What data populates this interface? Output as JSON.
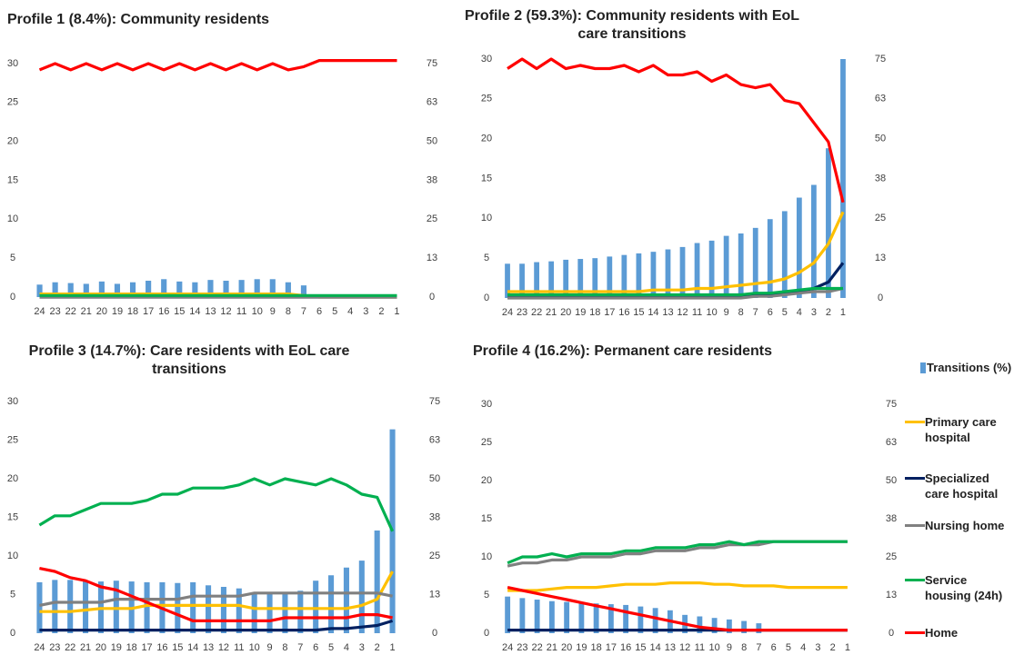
{
  "chart_data": [
    {
      "type": "combo",
      "title": "Profile 1 (8.4%): Community residents",
      "categories": [
        "24",
        "23",
        "22",
        "21",
        "20",
        "19",
        "18",
        "17",
        "16",
        "15",
        "14",
        "13",
        "12",
        "11",
        "10",
        "9",
        "8",
        "7",
        "6",
        "5",
        "4",
        "3",
        "2",
        "1"
      ],
      "ylim": [
        0,
        30
      ],
      "yticks": [
        0,
        5,
        10,
        15,
        20,
        25,
        30
      ],
      "y2lim": [
        0,
        75
      ],
      "y2ticks": [
        0,
        {
          "value": 12.5,
          "label": "13"
        },
        25,
        {
          "value": 37.5,
          "label": "38"
        },
        50,
        {
          "value": 62.5,
          "label": "63"
        },
        75
      ],
      "series": [
        {
          "color": "#5b9bd5",
          "values": [
            1.6,
            1.9,
            1.8,
            1.7,
            2.0,
            1.7,
            1.9,
            2.1,
            2.3,
            2.0,
            1.9,
            2.2,
            2.1,
            2.2,
            2.3,
            2.3,
            1.9,
            1.5,
            null,
            null,
            null,
            null,
            null,
            null
          ]
        },
        {
          "color": "#ffc000",
          "axis": "y2",
          "values": [
            1,
            1,
            1,
            1,
            1,
            1,
            1,
            1,
            1,
            1,
            1,
            1,
            1,
            1,
            1,
            1,
            1,
            0.5,
            0,
            0,
            0,
            0,
            0,
            0
          ]
        },
        {
          "color": "#002060",
          "axis": "y2",
          "values": [
            0,
            0,
            0,
            0,
            0,
            0,
            0,
            0,
            0,
            0,
            0,
            0,
            0,
            0,
            0,
            0,
            0,
            0,
            0,
            0,
            0,
            0,
            0,
            0
          ]
        },
        {
          "color": "#808080",
          "axis": "y2",
          "values": [
            0,
            0,
            0,
            0,
            0,
            0,
            0,
            0,
            0,
            0,
            0,
            0,
            0,
            0,
            0,
            0,
            0,
            0,
            0,
            0,
            0,
            0,
            0,
            0
          ]
        },
        {
          "color": "#00b050",
          "axis": "y2",
          "values": [
            0.5,
            0.5,
            0.5,
            0.5,
            0.5,
            0.5,
            0.5,
            0.5,
            0.5,
            0.5,
            0.5,
            0.5,
            0.5,
            0.5,
            0.5,
            0.5,
            0.5,
            0.5,
            0.5,
            0.5,
            0.5,
            0.5,
            0.5,
            0.5
          ]
        },
        {
          "color": "#ff0000",
          "axis": "y2",
          "values": [
            73,
            75,
            73,
            75,
            73,
            75,
            73,
            75,
            73,
            75,
            73,
            75,
            73,
            75,
            73,
            75,
            73,
            74,
            76,
            76,
            76,
            76,
            76,
            76
          ]
        }
      ]
    },
    {
      "type": "combo",
      "title": "Profile 2 (59.3%): Community residents with EoL care  transitions",
      "categories": [
        "24",
        "23",
        "22",
        "21",
        "20",
        "19",
        "18",
        "17",
        "16",
        "15",
        "14",
        "13",
        "12",
        "11",
        "10",
        "9",
        "8",
        "7",
        "6",
        "5",
        "4",
        "3",
        "2",
        "1"
      ],
      "ylim": [
        0,
        30
      ],
      "yticks": [
        0,
        5,
        10,
        15,
        20,
        25,
        30
      ],
      "y2lim": [
        0,
        75
      ],
      "y2ticks": [
        0,
        {
          "value": 12.5,
          "label": "13"
        },
        25,
        {
          "value": 37.5,
          "label": "38"
        },
        50,
        {
          "value": 62.5,
          "label": "63"
        },
        75
      ],
      "series": [
        {
          "color": "#5b9bd5",
          "values": [
            4.3,
            4.3,
            4.5,
            4.6,
            4.8,
            4.9,
            5.0,
            5.2,
            5.4,
            5.6,
            5.8,
            6.1,
            6.4,
            6.9,
            7.2,
            7.8,
            8.1,
            8.8,
            9.9,
            10.9,
            12.6,
            14.2,
            18.8,
            30
          ]
        },
        {
          "color": "#ffc000",
          "axis": "y2",
          "values": [
            2,
            2,
            2,
            2,
            2,
            2,
            2,
            2,
            2,
            2,
            2.5,
            2.5,
            2.5,
            3,
            3,
            3.5,
            4,
            4.5,
            5,
            6,
            8,
            11,
            17,
            27
          ]
        },
        {
          "color": "#002060",
          "axis": "y2",
          "values": [
            0.5,
            0.5,
            0.5,
            0.5,
            0.5,
            0.5,
            0.5,
            0.5,
            0.5,
            0.5,
            0.5,
            0.5,
            0.5,
            0.5,
            0.5,
            0.5,
            0.5,
            1,
            1,
            1.5,
            2,
            3,
            5,
            11
          ]
        },
        {
          "color": "#808080",
          "axis": "y2",
          "values": [
            0,
            0,
            0,
            0,
            0,
            0,
            0,
            0,
            0,
            0,
            0,
            0,
            0,
            0,
            0,
            0,
            0,
            0.5,
            0.5,
            1,
            1.5,
            2,
            2,
            3
          ]
        },
        {
          "color": "#00b050",
          "axis": "y2",
          "values": [
            1,
            1,
            1,
            1,
            1,
            1,
            1,
            1,
            1,
            1,
            1,
            1,
            1,
            1,
            1,
            1,
            1,
            1.5,
            1.5,
            2,
            2.5,
            3,
            3,
            3
          ]
        },
        {
          "color": "#ff0000",
          "axis": "y2",
          "values": [
            72,
            75,
            72,
            75,
            72,
            73,
            72,
            72,
            73,
            71,
            73,
            70,
            70,
            71,
            68,
            70,
            67,
            66,
            67,
            62,
            61,
            55,
            49,
            30
          ]
        }
      ]
    },
    {
      "type": "combo",
      "title": "Profile 3 (14.7%): Care residents with EoL care transitions",
      "categories": [
        "24",
        "23",
        "22",
        "21",
        "20",
        "19",
        "18",
        "17",
        "16",
        "15",
        "14",
        "13",
        "12",
        "11",
        "10",
        "9",
        "8",
        "7",
        "6",
        "5",
        "4",
        "3",
        "2",
        "1"
      ],
      "ylim": [
        0,
        30
      ],
      "yticks": [
        0,
        5,
        10,
        15,
        20,
        25,
        30
      ],
      "y2lim": [
        0,
        75
      ],
      "y2ticks": [
        0,
        {
          "value": 12.5,
          "label": "13"
        },
        25,
        {
          "value": 37.5,
          "label": "38"
        },
        50,
        {
          "value": 62.5,
          "label": "63"
        },
        75
      ],
      "series": [
        {
          "color": "#5b9bd5",
          "values": [
            6.6,
            6.9,
            6.9,
            6.8,
            6.7,
            6.8,
            6.7,
            6.6,
            6.6,
            6.5,
            6.6,
            6.2,
            6.0,
            5.8,
            5.3,
            5.1,
            5.2,
            5.5,
            6.8,
            7.5,
            8.5,
            9.4,
            13.3,
            26.4
          ]
        },
        {
          "color": "#ffc000",
          "axis": "y2",
          "values": [
            7,
            7,
            7,
            7.5,
            8,
            8,
            8,
            9,
            9,
            9,
            9,
            9,
            9,
            9,
            8,
            8,
            8,
            8,
            8,
            8,
            8,
            9,
            11,
            20
          ]
        },
        {
          "color": "#002060",
          "axis": "y2",
          "values": [
            1,
            1,
            1,
            1,
            1,
            1,
            1,
            1,
            1,
            1,
            1,
            1,
            1,
            1,
            1,
            1,
            1,
            1,
            1,
            1.5,
            1.5,
            2,
            2.5,
            4
          ]
        },
        {
          "color": "#808080",
          "axis": "y2",
          "values": [
            9,
            10,
            10,
            10,
            10,
            11,
            11,
            11,
            11,
            11,
            12,
            12,
            12,
            12,
            13,
            13,
            13,
            13,
            13,
            13,
            13,
            13,
            13,
            12
          ]
        },
        {
          "color": "#00b050",
          "axis": "y2",
          "values": [
            35,
            38,
            38,
            40,
            42,
            42,
            42,
            43,
            45,
            45,
            47,
            47,
            47,
            48,
            50,
            48,
            50,
            49,
            48,
            50,
            48,
            45,
            44,
            33
          ]
        },
        {
          "color": "#ff0000",
          "axis": "y2",
          "values": [
            21,
            20,
            18,
            17,
            15,
            14,
            12,
            10,
            8,
            6,
            4,
            4,
            4,
            4,
            4,
            4,
            5,
            5,
            5,
            5,
            5,
            6,
            6,
            5
          ]
        }
      ]
    },
    {
      "type": "combo",
      "title": "Profile 4 (16.2%): Permanent care residents",
      "categories": [
        "24",
        "23",
        "22",
        "21",
        "20",
        "19",
        "18",
        "17",
        "16",
        "15",
        "14",
        "13",
        "12",
        "11",
        "10",
        "9",
        "8",
        "7",
        "6",
        "5",
        "4",
        "3",
        "2",
        "1"
      ],
      "ylim": [
        0,
        30
      ],
      "yticks": [
        0,
        5,
        10,
        15,
        20,
        25,
        30
      ],
      "y2lim": [
        0,
        75
      ],
      "y2ticks": [
        0,
        {
          "value": 12.5,
          "label": "13"
        },
        25,
        {
          "value": 37.5,
          "label": "38"
        },
        50,
        {
          "value": 62.5,
          "label": "63"
        },
        75
      ],
      "series": [
        {
          "name": "Transitions (%)",
          "color": "#5b9bd5",
          "values": [
            4.8,
            4.6,
            4.4,
            4.2,
            4.1,
            4.0,
            3.9,
            3.8,
            3.7,
            3.5,
            3.3,
            3.0,
            2.4,
            2.2,
            2.0,
            1.8,
            1.6,
            1.3,
            null,
            null,
            null,
            null,
            null,
            null
          ]
        },
        {
          "name": "Primary care hospital",
          "color": "#ffc000",
          "axis": "y2",
          "values": [
            14,
            14,
            14,
            14.5,
            15,
            15,
            15,
            15.5,
            16,
            16,
            16,
            16.5,
            16.5,
            16.5,
            16,
            16,
            15.5,
            15.5,
            15.5,
            15,
            15,
            15,
            15,
            15
          ]
        },
        {
          "name": "Specialized care hospital",
          "color": "#002060",
          "axis": "y2",
          "values": [
            1,
            1,
            1,
            1,
            1,
            1,
            1,
            1,
            1,
            1,
            1,
            1,
            1,
            1,
            1,
            1,
            1,
            1,
            1,
            1,
            1,
            1,
            1,
            1
          ]
        },
        {
          "name": "Nursing home",
          "color": "#808080",
          "axis": "y2",
          "values": [
            22,
            23,
            23,
            24,
            24,
            25,
            25,
            25,
            26,
            26,
            27,
            27,
            27,
            28,
            28,
            29,
            29,
            29,
            30,
            30,
            30,
            30,
            30,
            30
          ]
        },
        {
          "name": "Service housing (24h)",
          "color": "#00b050",
          "axis": "y2",
          "values": [
            23,
            25,
            25,
            26,
            25,
            26,
            26,
            26,
            27,
            27,
            28,
            28,
            28,
            29,
            29,
            30,
            29,
            30,
            30,
            30,
            30,
            30,
            30,
            30
          ]
        },
        {
          "name": "Home",
          "color": "#ff0000",
          "axis": "y2",
          "values": [
            15,
            14,
            13,
            12,
            11,
            10,
            9,
            8,
            7,
            6,
            5,
            4,
            3,
            2,
            1.5,
            1,
            1,
            1,
            1,
            1,
            1,
            1,
            1,
            1
          ]
        }
      ]
    }
  ]
}
